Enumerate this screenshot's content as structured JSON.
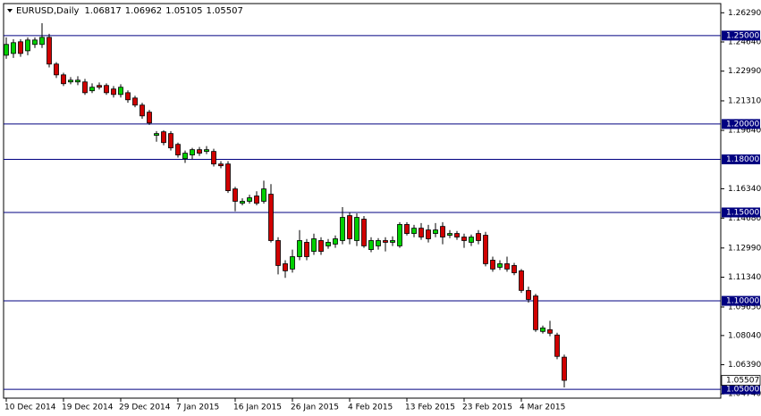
{
  "chart_data": {
    "type": "candlestick",
    "title": "EURUSD,Daily",
    "up_color": "#00d000",
    "down_color": "#d00000",
    "outline_color": "#000000",
    "level_color": "#000080",
    "categories": [
      "10 Dec 2014",
      null,
      null,
      null,
      null,
      null,
      null,
      null,
      "19 Dec 2014",
      null,
      null,
      null,
      null,
      null,
      null,
      null,
      "29 Dec 2014",
      null,
      null,
      null,
      null,
      null,
      null,
      null,
      "7 Jan 2015",
      null,
      null,
      null,
      null,
      null,
      null,
      null,
      "16 Jan 2015",
      null,
      null,
      null,
      null,
      null,
      null,
      null,
      "26 Jan 2015",
      null,
      null,
      null,
      null,
      null,
      null,
      null,
      "4 Feb 2015",
      null,
      null,
      null,
      null,
      null,
      null,
      null,
      "13 Feb 2015",
      null,
      null,
      null,
      null,
      null,
      null,
      null,
      "23 Feb 2015",
      null,
      null,
      null,
      null,
      null,
      null,
      null,
      "4 Mar 2015",
      null,
      null,
      null,
      null,
      null,
      null
    ],
    "open": [
      1.2389,
      1.2399,
      1.2465,
      1.2414,
      1.245,
      1.245,
      1.249,
      1.2339,
      1.2278,
      1.2238,
      1.2238,
      1.2238,
      1.2188,
      1.2218,
      1.2218,
      1.2198,
      1.2167,
      1.2177,
      1.2147,
      1.2107,
      1.2067,
      1.1936,
      1.1956,
      1.1946,
      1.1885,
      1.1804,
      1.1825,
      1.1855,
      1.1845,
      1.1845,
      1.1774,
      1.1774,
      1.1633,
      1.1552,
      1.1563,
      1.1593,
      1.1563,
      1.1603,
      1.1341,
      1.121,
      1.118,
      1.125,
      1.1331,
      1.128,
      1.1341,
      1.1311,
      1.1321,
      1.1341,
      1.1482,
      1.1341,
      1.1462,
      1.129,
      1.1311,
      1.1341,
      1.1331,
      1.1311,
      1.1432,
      1.1381,
      1.1411,
      1.1401,
      1.1381,
      1.1421,
      1.1371,
      1.1381,
      1.1361,
      1.1331,
      1.1381,
      1.1371,
      1.123,
      1.119,
      1.121,
      1.12,
      1.117,
      1.1059,
      1.1028,
      1.0827,
      1.0837,
      1.0807,
      1.06817
    ],
    "high": [
      1.249,
      1.248,
      1.248,
      1.249,
      1.249,
      1.257,
      1.251,
      1.235,
      1.229,
      1.2265,
      1.227,
      1.2255,
      1.223,
      1.2235,
      1.223,
      1.2215,
      1.2225,
      1.219,
      1.216,
      1.212,
      1.208,
      1.196,
      1.1965,
      1.196,
      1.1895,
      1.185,
      1.1865,
      1.187,
      1.1875,
      1.186,
      1.179,
      1.179,
      1.1645,
      1.158,
      1.16,
      1.162,
      1.168,
      1.166,
      1.136,
      1.123,
      1.129,
      1.14,
      1.135,
      1.138,
      1.136,
      1.135,
      1.137,
      1.153,
      1.15,
      1.1495,
      1.148,
      1.136,
      1.1355,
      1.136,
      1.1365,
      1.1445,
      1.1445,
      1.143,
      1.144,
      1.143,
      1.144,
      1.1445,
      1.14,
      1.1395,
      1.138,
      1.1375,
      1.14,
      1.139,
      1.125,
      1.123,
      1.125,
      1.1215,
      1.118,
      1.108,
      1.104,
      1.086,
      1.0887,
      1.082,
      1.06962
    ],
    "low": [
      1.2369,
      1.2374,
      1.238,
      1.2389,
      1.243,
      1.243,
      1.232,
      1.226,
      1.2215,
      1.2225,
      1.222,
      1.2165,
      1.2175,
      1.2195,
      1.2165,
      1.215,
      1.215,
      1.212,
      1.2095,
      1.203,
      1.1995,
      1.19,
      1.188,
      1.185,
      1.181,
      1.178,
      1.18,
      1.182,
      1.183,
      1.176,
      1.175,
      1.161,
      1.1507,
      1.154,
      1.155,
      1.154,
      1.155,
      1.133,
      1.115,
      1.113,
      1.116,
      1.123,
      1.123,
      1.126,
      1.126,
      1.1295,
      1.13,
      1.132,
      1.132,
      1.131,
      1.13,
      1.1275,
      1.129,
      1.128,
      1.131,
      1.13,
      1.137,
      1.136,
      1.1345,
      1.133,
      1.136,
      1.132,
      1.1355,
      1.1345,
      1.13,
      1.131,
      1.132,
      1.1195,
      1.1165,
      1.1175,
      1.1165,
      1.1145,
      1.1045,
      1.099,
      1.0825,
      1.0815,
      1.08,
      1.067,
      1.05105
    ],
    "close": [
      1.245,
      1.246,
      1.2399,
      1.2475,
      1.2475,
      1.249,
      1.2339,
      1.2278,
      1.2228,
      1.2248,
      1.2248,
      1.2177,
      1.2208,
      1.2208,
      1.2177,
      1.2167,
      1.2208,
      1.2137,
      1.2107,
      1.2046,
      1.2006,
      1.1946,
      1.1895,
      1.1865,
      1.1825,
      1.1835,
      1.1855,
      1.1835,
      1.1855,
      1.1774,
      1.1764,
      1.1623,
      1.1563,
      1.1563,
      1.1583,
      1.1552,
      1.1633,
      1.1341,
      1.12,
      1.117,
      1.125,
      1.1341,
      1.125,
      1.1351,
      1.128,
      1.1331,
      1.1351,
      1.1472,
      1.1351,
      1.1472,
      1.1311,
      1.1341,
      1.1341,
      1.1331,
      1.1341,
      1.1432,
      1.1381,
      1.1411,
      1.1361,
      1.1351,
      1.1401,
      1.1361,
      1.1381,
      1.1361,
      1.1341,
      1.1361,
      1.1341,
      1.121,
      1.118,
      1.121,
      1.118,
      1.1159,
      1.1059,
      1.1008,
      1.0837,
      1.0847,
      1.0817,
      1.0686,
      1.05507
    ],
    "ylim": [
      1.045,
      1.2681
    ],
    "yticks": [
      {
        "value": 1.2629,
        "label": "1.26290"
      },
      {
        "value": 1.2464,
        "label": "1.24640"
      },
      {
        "value": 1.2299,
        "label": "1.22990"
      },
      {
        "value": 1.2131,
        "label": "1.21310"
      },
      {
        "value": 1.1964,
        "label": "1.19640"
      },
      {
        "value": 1.1634,
        "label": "1.16340"
      },
      {
        "value": 1.1468,
        "label": "1.14680"
      },
      {
        "value": 1.1299,
        "label": "1.12990"
      },
      {
        "value": 1.1134,
        "label": "1.11340"
      },
      {
        "value": 1.0965,
        "label": "1.09650"
      },
      {
        "value": 1.0804,
        "label": "1.08040"
      },
      {
        "value": 1.0639,
        "label": "1.06390"
      },
      {
        "value": 1.0474,
        "label": "1.04740"
      }
    ],
    "levels": [
      {
        "value": 1.25,
        "label": "1.25000"
      },
      {
        "value": 1.2,
        "label": "1.20000"
      },
      {
        "value": 1.18,
        "label": "1.18000"
      },
      {
        "value": 1.15,
        "label": "1.15000"
      },
      {
        "value": 1.1,
        "label": "1.10000"
      },
      {
        "value": 1.05,
        "label": "1.05000"
      }
    ]
  }
}
